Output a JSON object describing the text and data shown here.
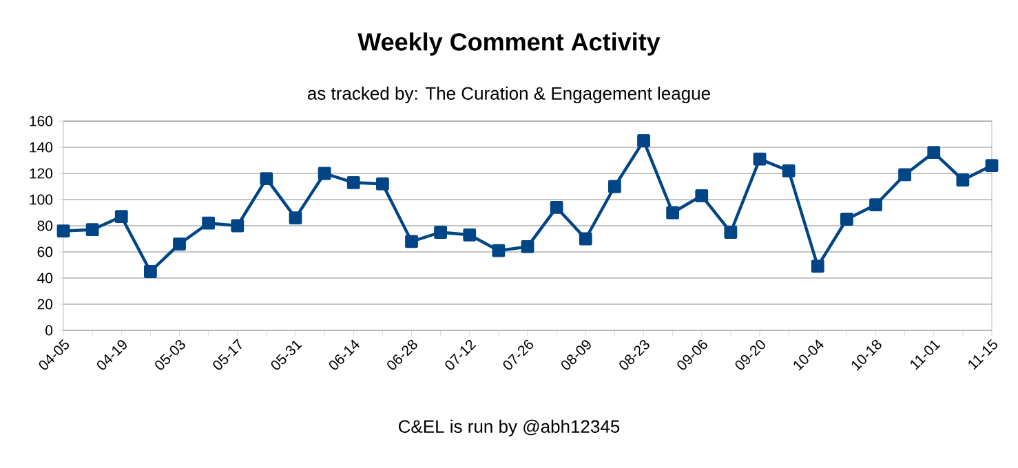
{
  "chart_data": {
    "type": "line",
    "title": "Weekly Comment Activity",
    "subtitle": "as tracked by: The Curation & Engagement league",
    "annotations": [
      "C&EL is run by @abh12345"
    ],
    "categories": [
      "04-05",
      null,
      "04-19",
      null,
      "05-03",
      null,
      "05-17",
      null,
      "05-31",
      null,
      "06-14",
      null,
      "06-28",
      null,
      "07-12",
      null,
      "07-26",
      null,
      "08-09",
      null,
      "08-23",
      null,
      "09-06",
      null,
      "09-20",
      null,
      "10-04",
      null,
      "10-18",
      null,
      "11-01",
      null,
      "11-15"
    ],
    "series": [
      {
        "color": "#004586",
        "values": [
          76,
          77,
          87,
          45,
          66,
          82,
          80,
          116,
          86,
          120,
          113,
          112,
          68,
          75,
          73,
          61,
          64,
          94,
          70,
          110,
          145,
          90,
          103,
          75,
          131,
          122,
          49,
          85,
          96,
          119,
          136,
          115,
          126
        ]
      }
    ],
    "ylim": [
      0,
      160
    ],
    "yticks": [
      0,
      20,
      40,
      60,
      80,
      100,
      120,
      140,
      160
    ],
    "grid": "y",
    "marker": "square",
    "line_style": "solid"
  }
}
